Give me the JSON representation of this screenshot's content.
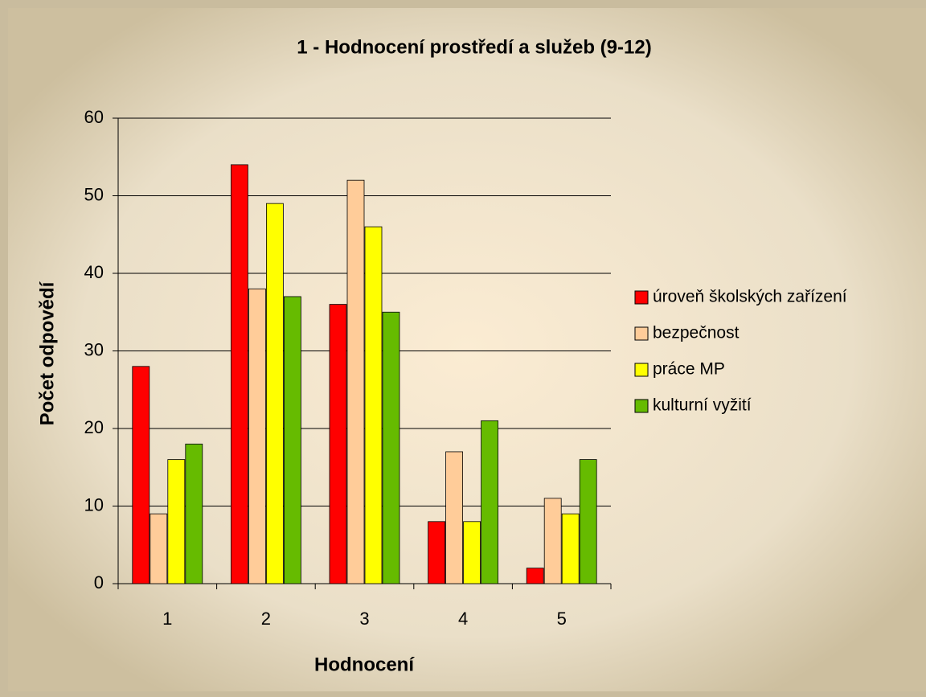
{
  "chart_data": {
    "type": "bar",
    "title": "1 - Hodnocení prostředí a služeb (9-12)",
    "x_label": "Hodnocení",
    "y_label": "Počet odpovědí",
    "categories": [
      "1",
      "2",
      "3",
      "4",
      "5"
    ],
    "series": [
      {
        "name": "úroveň školských zařízení",
        "color": "#ff0000",
        "values": [
          28,
          54,
          36,
          8,
          2
        ]
      },
      {
        "name": "bezpečnost",
        "color": "#ffcc99",
        "values": [
          9,
          38,
          52,
          17,
          11
        ]
      },
      {
        "name": "práce MP",
        "color": "#ffff00",
        "values": [
          16,
          49,
          46,
          8,
          9
        ]
      },
      {
        "name": "kulturní vyžití",
        "color": "#66bb00",
        "values": [
          18,
          37,
          35,
          21,
          16
        ]
      }
    ],
    "ylim": [
      0,
      60
    ],
    "yticks": [
      0,
      10,
      20,
      30,
      40,
      50,
      60
    ],
    "grid": true,
    "legend": "right"
  }
}
